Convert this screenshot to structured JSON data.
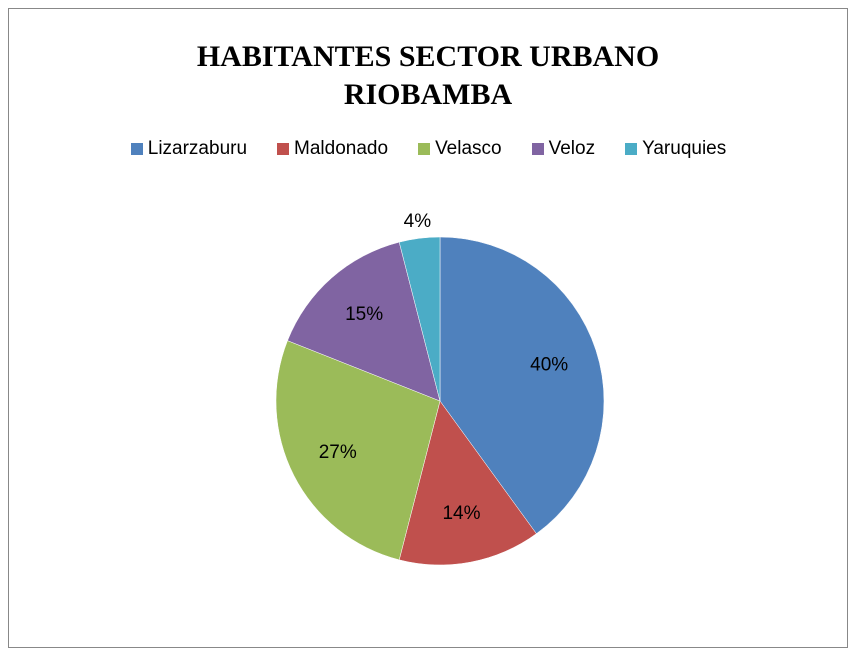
{
  "chart_data": {
    "type": "pie",
    "title": "HABITANTES SECTOR URBANO RIOBAMBA",
    "categories": [
      "Lizarzaburu",
      "Maldonado",
      "Velasco",
      "Veloz",
      "Yaruquies"
    ],
    "values": [
      40,
      14,
      27,
      15,
      4
    ],
    "value_labels": [
      "40%",
      "14%",
      "27%",
      "15%",
      "4%"
    ],
    "colors": [
      "#4f81bd",
      "#c0504d",
      "#9bbb59",
      "#8064a2",
      "#4bacc6"
    ],
    "legend": "top"
  }
}
